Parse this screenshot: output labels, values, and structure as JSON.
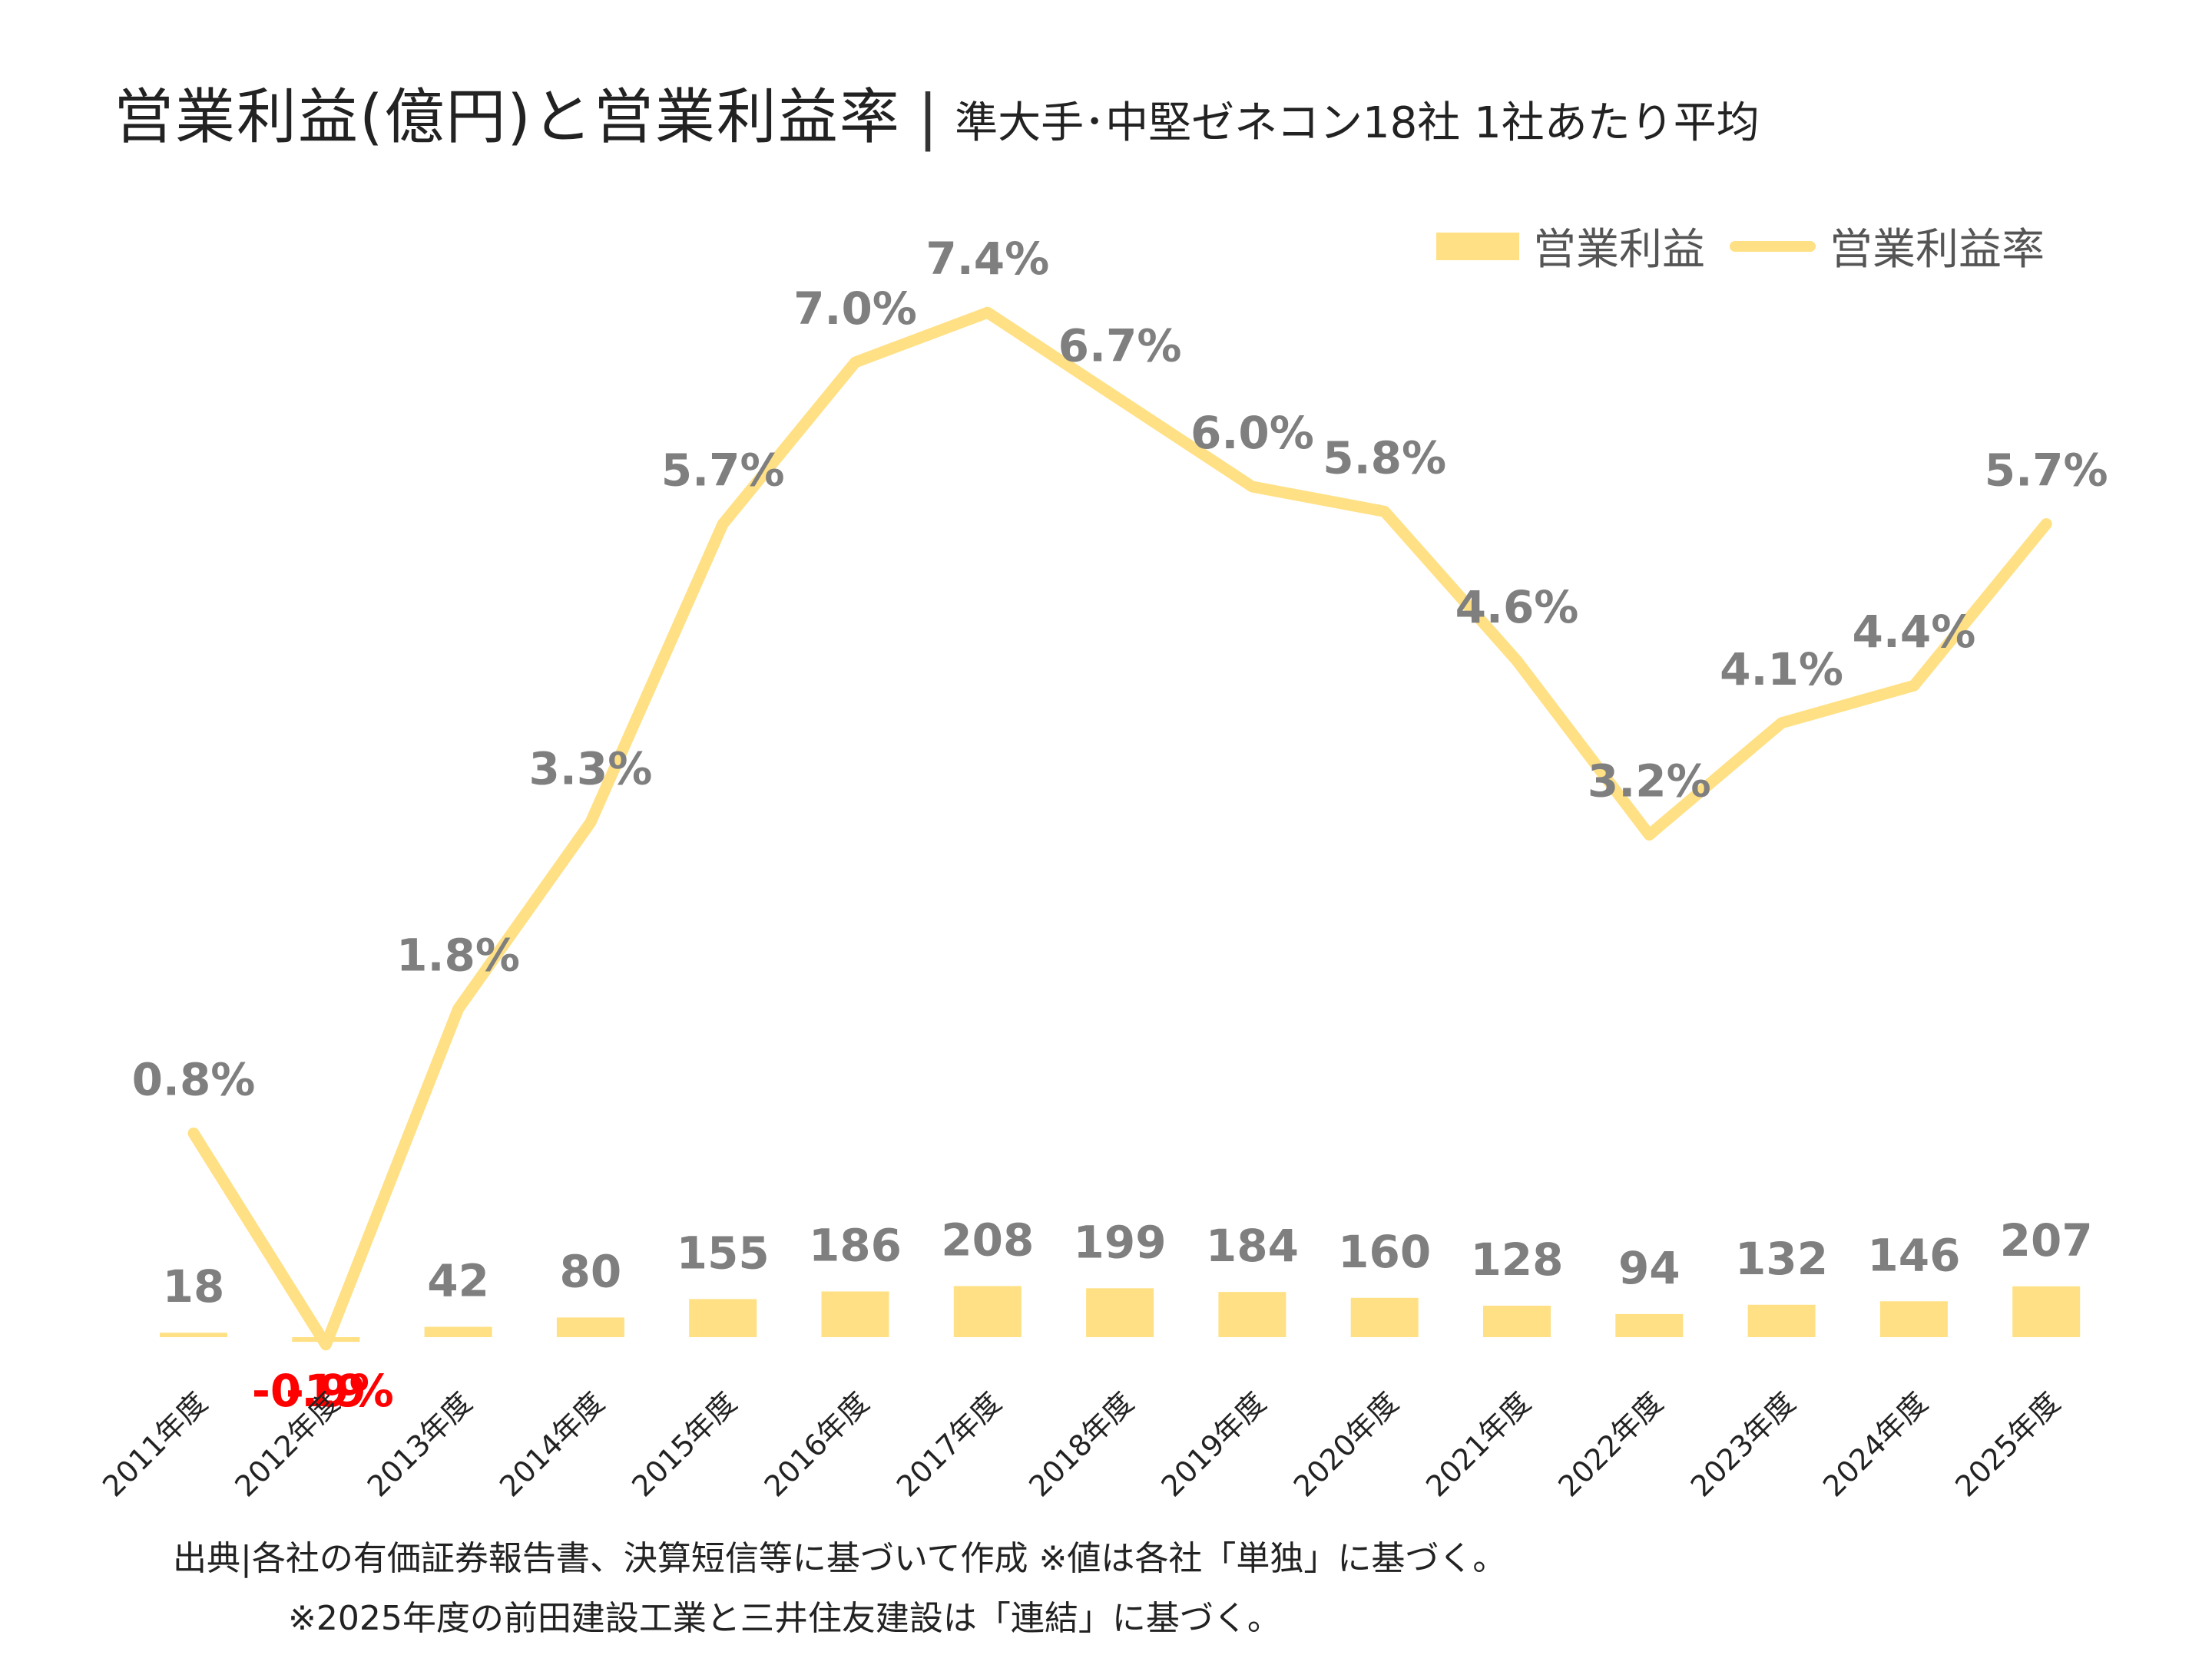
{
  "title": {
    "main": "営業利益(億円)と営業利益率",
    "separator": "|",
    "sub": "準大手･中堅ゼネコン18社 1社あたり平均"
  },
  "legend": {
    "bar_label": "営業利益",
    "line_label": "営業利益率"
  },
  "colors": {
    "bar": "#ffe084",
    "line": "#ffe084",
    "label_gray": "#7f7f7f",
    "label_negative": "#ff0000"
  },
  "chart_data": {
    "type": "bar+line",
    "categories": [
      "2011年度",
      "2012年度",
      "2013年度",
      "2014年度",
      "2015年度",
      "2016年度",
      "2017年度",
      "2018年度",
      "2019年度",
      "2020年度",
      "2021年度",
      "2022年度",
      "2023年度",
      "2024年度",
      "2025年度"
    ],
    "series": [
      {
        "name": "営業利益",
        "type": "bar",
        "values": [
          18,
          -19,
          42,
          80,
          155,
          186,
          208,
          199,
          184,
          160,
          128,
          94,
          132,
          146,
          207
        ],
        "labels": [
          "18",
          "-19",
          "42",
          "80",
          "155",
          "186",
          "208",
          "199",
          "184",
          "160",
          "128",
          "94",
          "132",
          "146",
          "207"
        ]
      },
      {
        "name": "営業利益率",
        "type": "line",
        "values": [
          0.8,
          -0.9,
          1.8,
          3.3,
          5.7,
          7.0,
          7.4,
          6.7,
          6.0,
          5.8,
          4.6,
          3.2,
          4.1,
          4.4,
          5.7
        ],
        "labels": [
          "0.8%",
          "-0.9%",
          "1.8%",
          "3.3%",
          "5.7%",
          "7.0%",
          "7.4%",
          "6.7%",
          "6.0%",
          "5.8%",
          "4.6%",
          "3.2%",
          "4.1%",
          "4.4%",
          "5.7%"
        ]
      }
    ],
    "legend_position": "top-right",
    "grid": false
  },
  "source": {
    "line1": "出典|各社の有価証券報告書、決算短信等に基づいて作成 ※値は各社「単独」に基づく。",
    "line2": "※2025年度の前田建設工業と三井住友建設は「連結」に基づく。"
  }
}
